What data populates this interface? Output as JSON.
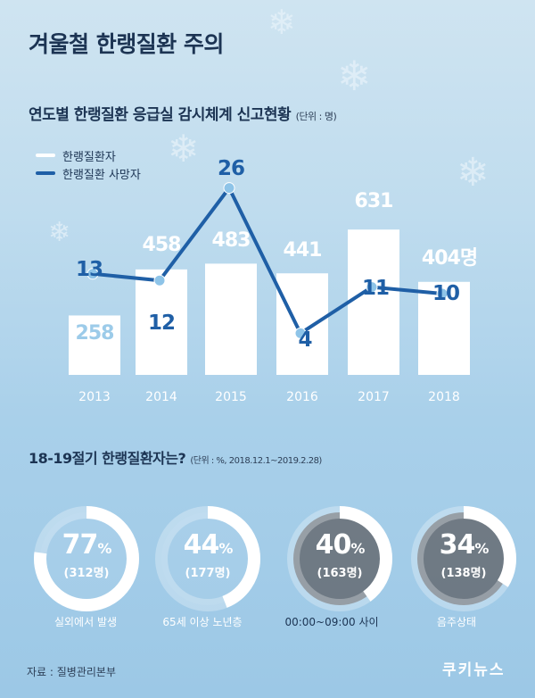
{
  "title": "겨울철 한랭질환 주의",
  "section1": {
    "heading": "연도별 한랭질환 응급실 감시체계 신고현황",
    "unit": "(단위 : 명)"
  },
  "legend": {
    "patients": "한랭질환자",
    "deaths": "한랭질환 사망자"
  },
  "colors": {
    "bar": "#ffffff",
    "line": "#1f5fa6",
    "marker": "#8ec4e8",
    "bar_value": "#9ccbe9",
    "line_value": "#1f5fa6",
    "axis_text": "#ffffff"
  },
  "chart_data": {
    "type": "bar",
    "categories": [
      "2013",
      "2014",
      "2015",
      "2016",
      "2017",
      "2018"
    ],
    "series": [
      {
        "name": "한랭질환자",
        "type": "bar",
        "values": [
          258,
          458,
          483,
          441,
          631,
          404
        ]
      },
      {
        "name": "한랭질환 사망자",
        "type": "line",
        "values": [
          13,
          12,
          26,
          4,
          11,
          10
        ]
      }
    ],
    "value_labels": {
      "patients": [
        "258",
        "458",
        "483",
        "441",
        "631",
        "404명"
      ],
      "deaths": [
        "13",
        "12",
        "26",
        "4",
        "11",
        "10"
      ]
    },
    "legend_position": "top-left",
    "grid": false
  },
  "section2": {
    "heading": "18-19절기 한랭질환자는?",
    "unit": "(단위 : %, 2018.12.1~2019.2.28)",
    "donuts": [
      {
        "value": 77,
        "pct": "77",
        "sign": "%",
        "count": "(312명)",
        "label": "실외에서 발생"
      },
      {
        "value": 44,
        "pct": "44",
        "sign": "%",
        "count": "(177명)",
        "label": "65세 이상 노년층"
      },
      {
        "value": 40,
        "pct": "40",
        "sign": "%",
        "count": "(163명)",
        "label": "00:00~09:00 사이"
      },
      {
        "value": 34,
        "pct": "34",
        "sign": "%",
        "count": "(138명)",
        "label": "음주상태"
      }
    ]
  },
  "footer": {
    "source": "자료 : 질병관리본부",
    "brand": "쿠키뉴스"
  }
}
